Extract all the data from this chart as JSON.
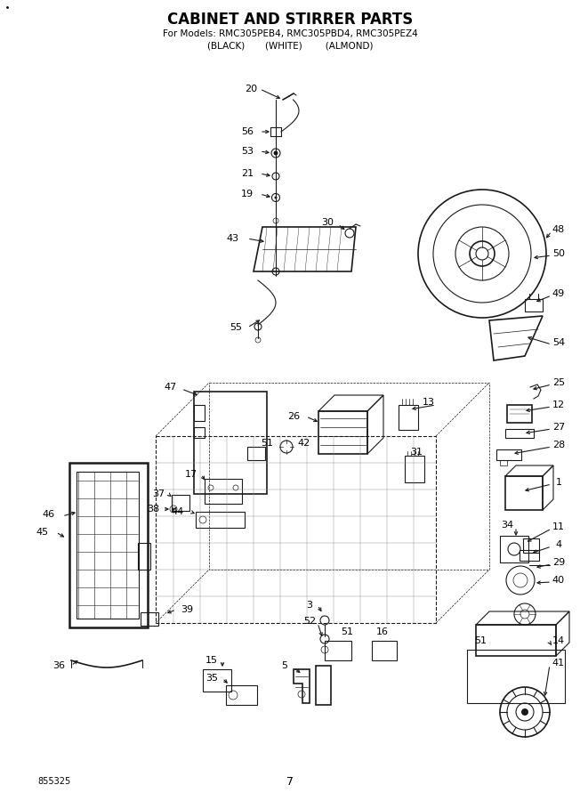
{
  "title_line1": "CABINET AND STIRRER PARTS",
  "title_line2": "For Models: RMC305PEB4, RMC305PBD4, RMC305PEZ4",
  "title_line3": "(BLACK)       (WHITE)        (ALMOND)",
  "page_number": "7",
  "doc_number": "855325",
  "background_color": "#ffffff",
  "line_color": "#000000",
  "fig_width": 6.52,
  "fig_height": 9.0,
  "dpi": 100
}
